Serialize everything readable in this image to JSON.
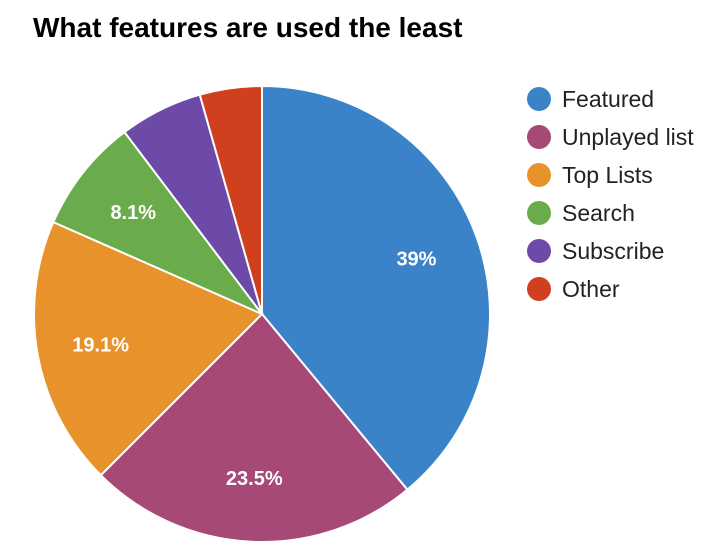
{
  "chart_data": {
    "type": "pie",
    "title": "What features are used the least",
    "categories": [
      "Featured",
      "Unplayed list",
      "Top Lists",
      "Search",
      "Subscribe",
      "Other"
    ],
    "values": [
      39.0,
      23.5,
      19.1,
      8.1,
      5.9,
      4.4
    ],
    "data_labels": [
      "39%",
      "23.5%",
      "19.1%",
      "8.1%",
      "",
      ""
    ],
    "colors": [
      "#3b83c9",
      "#a64977",
      "#e8922b",
      "#6aac4b",
      "#6d4aa8",
      "#d1401e"
    ],
    "legend_position": "right"
  }
}
